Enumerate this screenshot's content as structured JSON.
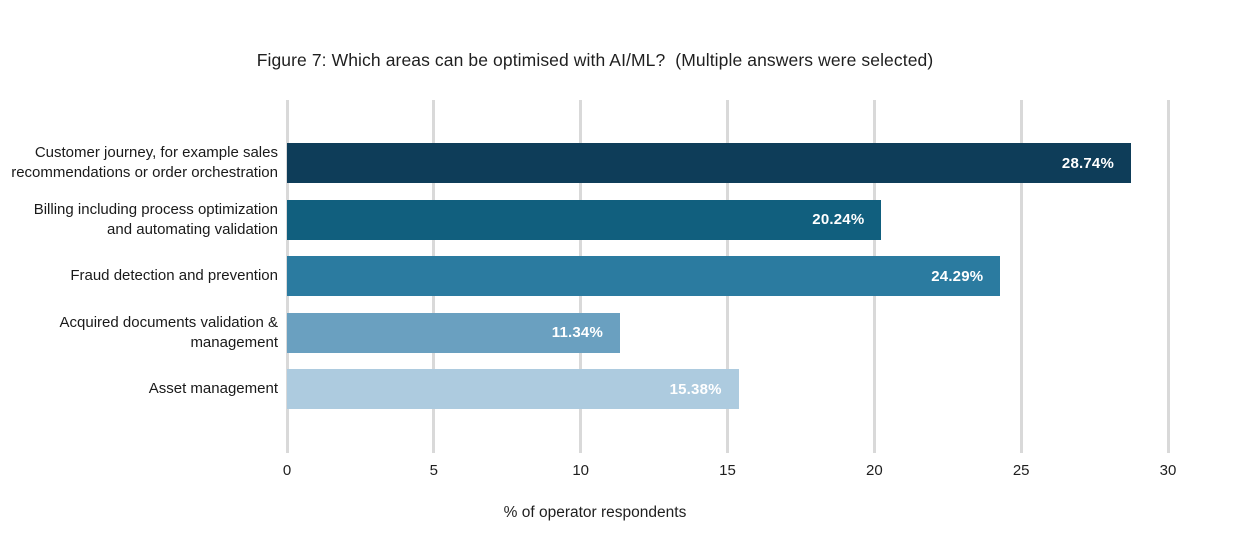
{
  "chart_data": {
    "type": "bar",
    "orientation": "horizontal",
    "title": "Figure 7: Which areas can be optimised with AI/ML?  (Multiple answers were selected)",
    "xlabel": "% of operator respondents",
    "ylabel": "",
    "categories": [
      "Customer journey, for example sales recommendations or order orchestration",
      "Billing including process optimization and automating validation",
      "Fraud detection and prevention",
      "Acquired documents validation & management",
      "Asset management"
    ],
    "values": [
      28.74,
      20.24,
      24.29,
      11.34,
      15.38
    ],
    "value_labels": [
      "28.74%",
      "20.24%",
      "24.29%",
      "11.34%",
      "15.38%"
    ],
    "bar_colors": [
      "#0e3d59",
      "#115f7e",
      "#2b7ba0",
      "#6aa0c0",
      "#adcbdf"
    ],
    "xlim": [
      0,
      30
    ],
    "xticks": [
      0,
      5,
      10,
      15,
      20,
      25,
      30
    ],
    "grid": "vertical",
    "gridline_color": "#d9d9d9",
    "value_label_color": "#ffffff",
    "background_color": "#ffffff",
    "legend": false
  }
}
